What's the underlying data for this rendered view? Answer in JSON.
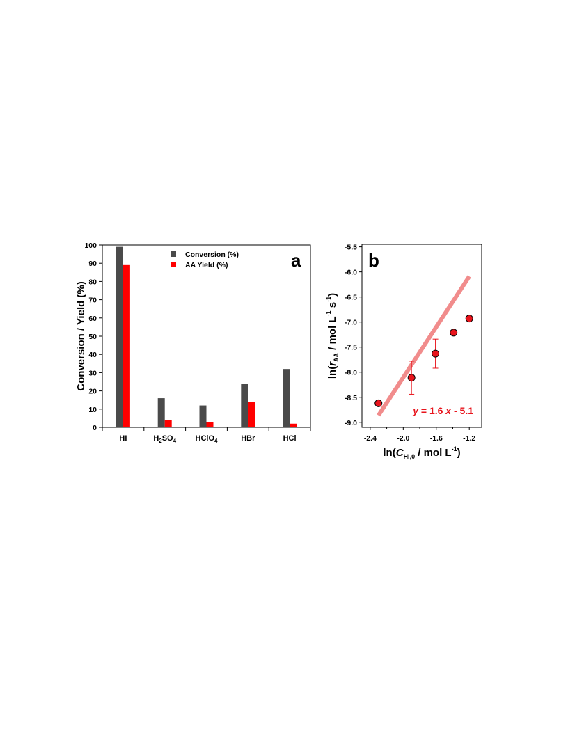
{
  "chart_data": [
    {
      "panel": "a",
      "type": "bar",
      "title": "",
      "ylabel": "Conversion / Yield (%)",
      "xlabel": "",
      "ylim": [
        0,
        100
      ],
      "yticks": [
        0,
        10,
        20,
        30,
        40,
        50,
        60,
        70,
        80,
        90,
        100
      ],
      "categories": [
        {
          "label": "HI",
          "parts": [
            {
              "t": "HI"
            }
          ]
        },
        {
          "label": "H2SO4",
          "parts": [
            {
              "t": "H"
            },
            {
              "t": "2",
              "sub": true
            },
            {
              "t": "SO"
            },
            {
              "t": "4",
              "sub": true
            }
          ]
        },
        {
          "label": "HClO4",
          "parts": [
            {
              "t": "HClO"
            },
            {
              "t": "4",
              "sub": true
            }
          ]
        },
        {
          "label": "HBr",
          "parts": [
            {
              "t": "HBr"
            }
          ]
        },
        {
          "label": "HCl",
          "parts": [
            {
              "t": "HCl"
            }
          ]
        }
      ],
      "series": [
        {
          "name": "Conversion (%)",
          "color": "#4a4a4a",
          "values": [
            99,
            16,
            12,
            24,
            32
          ]
        },
        {
          "name": "AA Yield (%)",
          "color": "#ff0000",
          "values": [
            89,
            4,
            3,
            14,
            2
          ]
        }
      ],
      "legend": "top-center",
      "grid": false
    },
    {
      "panel": "b",
      "type": "scatter",
      "title": "",
      "xlabel": {
        "pre": "ln(",
        "italic": "C",
        "sub": "HI,0",
        "post": " / mol L",
        "sup": "-1",
        "close": ")"
      },
      "ylabel": {
        "pre": "ln(",
        "italic": "r",
        "sub": "AA",
        "post": " / mol L",
        "sup1": "-1",
        "mid": " s",
        "sup2": "-1",
        "close": ")"
      },
      "xlim": [
        -2.5,
        -1.05
      ],
      "ylim": [
        -9.1,
        -5.45
      ],
      "xticks": [
        -2.4,
        -2.0,
        -1.6,
        -1.2
      ],
      "yticks": [
        -9.0,
        -8.5,
        -8.0,
        -7.5,
        -7.0,
        -6.5,
        -6.0,
        -5.5
      ],
      "points": [
        {
          "x": -2.3,
          "y": -8.62,
          "err": 0
        },
        {
          "x": -1.9,
          "y": -8.11,
          "err": 0.33
        },
        {
          "x": -1.61,
          "y": -7.63,
          "err": 0.29
        },
        {
          "x": -1.39,
          "y": -7.21,
          "err": 0
        },
        {
          "x": -1.2,
          "y": -6.93,
          "err": 0
        }
      ],
      "fit": {
        "slope": 1.6,
        "intercept": -5.1,
        "x_range": [
          -2.3,
          -1.2
        ],
        "color": "#f08080",
        "label_y": "y",
        "label_mid": " = 1.6 ",
        "label_x": "x",
        "label_end": " - 5.1"
      },
      "marker_color": "#e8141c",
      "grid": false
    }
  ]
}
